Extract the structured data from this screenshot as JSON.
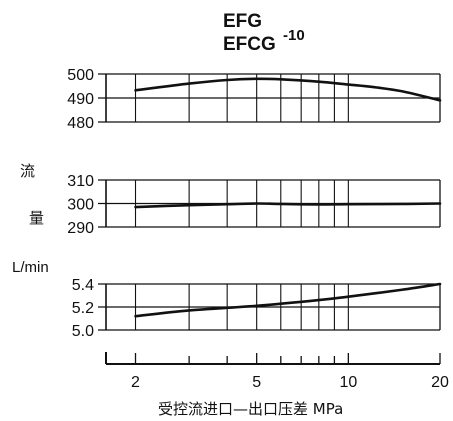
{
  "chart_data": [
    {
      "type": "line",
      "title": "EFG",
      "title_line2": "EFCG",
      "title_suffix": "-10",
      "xlabel": "受控流进口—出口压差  MPa",
      "x_scale": "log",
      "xlim": [
        1.6,
        20
      ],
      "x_ticks": [
        2,
        5,
        10,
        20
      ],
      "x_tick_labels": [
        "2",
        "5",
        "10",
        "20"
      ],
      "x_grid": [
        2,
        3,
        4,
        5,
        6,
        7,
        8,
        9,
        10,
        20
      ],
      "grid": true,
      "panels": [
        {
          "id": "top",
          "ylim": [
            480,
            500
          ],
          "y_ticks": [
            480,
            490,
            500
          ],
          "y_tick_labels": [
            "480",
            "490",
            "500"
          ],
          "series": [
            {
              "x": [
                2,
                3,
                4,
                5,
                6,
                8,
                10,
                12,
                15,
                20
              ],
              "y": [
                493.2,
                496.0,
                497.5,
                498.0,
                497.8,
                496.8,
                495.6,
                494.6,
                492.8,
                489.0
              ]
            }
          ]
        },
        {
          "id": "middle",
          "ylabel_chars": [
            "流",
            "量"
          ],
          "ylim": [
            290,
            310
          ],
          "y_ticks": [
            290,
            300,
            310
          ],
          "y_tick_labels": [
            "290",
            "300",
            "310"
          ],
          "series": [
            {
              "x": [
                2,
                3,
                4,
                5,
                6,
                8,
                10,
                15,
                20
              ],
              "y": [
                298.5,
                299.3,
                299.7,
                300.0,
                299.8,
                299.6,
                299.7,
                299.8,
                300.0
              ]
            }
          ]
        },
        {
          "id": "bottom",
          "ylabel": "L/min",
          "ylim": [
            5.0,
            5.4
          ],
          "y_ticks": [
            5.0,
            5.2,
            5.4
          ],
          "y_tick_labels": [
            "5.0",
            "5.2",
            "5.4"
          ],
          "series": [
            {
              "x": [
                2,
                3,
                5,
                8,
                10,
                15,
                20
              ],
              "y": [
                5.12,
                5.17,
                5.21,
                5.26,
                5.29,
                5.35,
                5.4
              ]
            }
          ]
        }
      ]
    }
  ]
}
